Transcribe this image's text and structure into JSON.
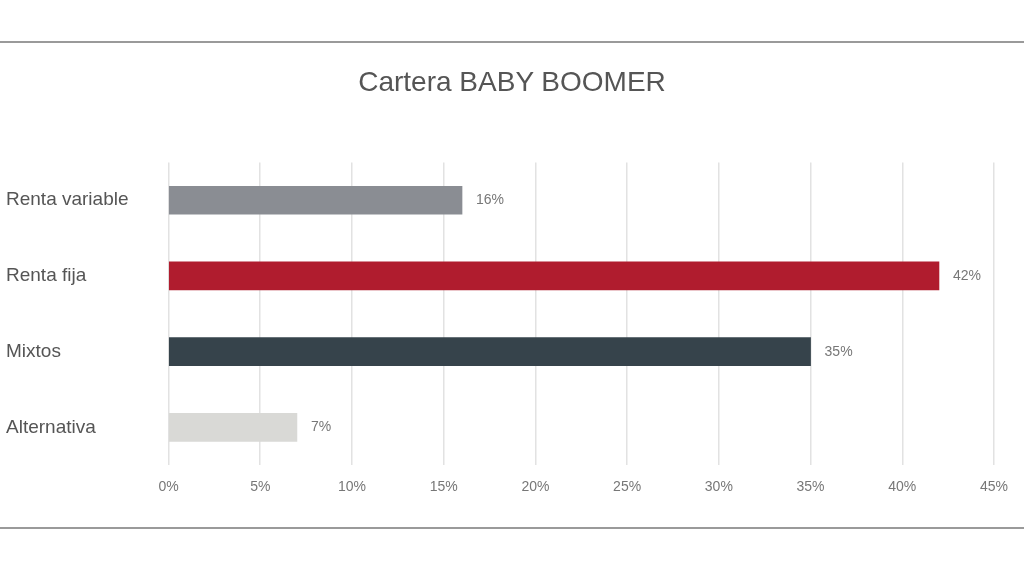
{
  "chart_data": {
    "type": "bar",
    "orientation": "horizontal",
    "title": "Cartera BABY BOOMER",
    "categories": [
      "Renta variable",
      "Renta fija",
      "Mixtos",
      "Alternativa"
    ],
    "values": [
      16,
      42,
      35,
      7
    ],
    "colors": [
      "#8a8d93",
      "#b01c2e",
      "#36434b",
      "#d9d9d6"
    ],
    "value_labels": [
      "16%",
      "42%",
      "35%",
      "7%"
    ],
    "xlim": [
      0,
      45
    ],
    "xticks": [
      {
        "value": 0,
        "label": "0%"
      },
      {
        "value": 5,
        "label": "5%"
      },
      {
        "value": 10,
        "label": "10%"
      },
      {
        "value": 15,
        "label": "15%"
      },
      {
        "value": 20,
        "label": "20%"
      },
      {
        "value": 25,
        "label": "25%"
      },
      {
        "value": 30,
        "label": "30%"
      },
      {
        "value": 35,
        "label": "35%"
      },
      {
        "value": 40,
        "label": "40%"
      },
      {
        "value": 45,
        "label": "45%"
      }
    ],
    "grid": "x",
    "legend": false
  }
}
